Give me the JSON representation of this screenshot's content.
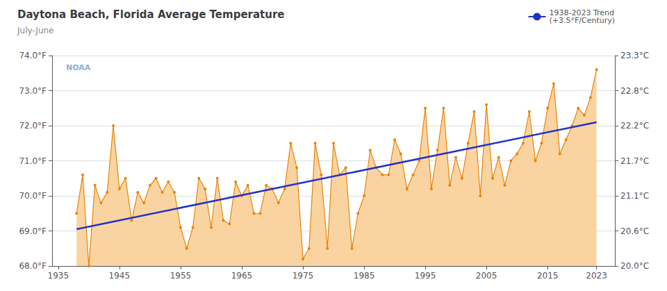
{
  "chart_data": {
    "type": "line",
    "title": "Daytona Beach, Florida Average Temperature",
    "subtitle": "July-June",
    "annotations": [
      "NOAA"
    ],
    "x": [
      1938,
      1939,
      1940,
      1941,
      1942,
      1943,
      1944,
      1945,
      1946,
      1947,
      1948,
      1949,
      1950,
      1951,
      1952,
      1953,
      1954,
      1955,
      1956,
      1957,
      1958,
      1959,
      1960,
      1961,
      1962,
      1963,
      1964,
      1965,
      1966,
      1967,
      1968,
      1969,
      1970,
      1971,
      1972,
      1973,
      1974,
      1975,
      1976,
      1977,
      1978,
      1979,
      1980,
      1981,
      1982,
      1983,
      1984,
      1985,
      1986,
      1987,
      1988,
      1989,
      1990,
      1991,
      1992,
      1993,
      1994,
      1995,
      1996,
      1997,
      1998,
      1999,
      2000,
      2001,
      2002,
      2003,
      2004,
      2005,
      2006,
      2007,
      2008,
      2009,
      2010,
      2011,
      2012,
      2013,
      2014,
      2015,
      2016,
      2017,
      2018,
      2019,
      2020,
      2021,
      2022,
      2023
    ],
    "series": [
      {
        "color": "#e8820a",
        "fill_color": "#fad4a0",
        "marker": "circle",
        "values": [
          69.5,
          70.6,
          68.0,
          70.3,
          69.8,
          70.1,
          72.0,
          70.2,
          70.5,
          69.3,
          70.1,
          69.8,
          70.3,
          70.5,
          70.1,
          70.4,
          70.1,
          69.1,
          68.5,
          69.1,
          70.5,
          70.2,
          69.1,
          70.5,
          69.3,
          69.2,
          70.4,
          70.0,
          70.3,
          69.5,
          69.5,
          70.3,
          70.2,
          69.8,
          70.2,
          71.5,
          70.8,
          68.2,
          68.5,
          71.5,
          70.6,
          68.5,
          71.5,
          70.6,
          70.8,
          68.5,
          69.5,
          70.0,
          71.3,
          70.8,
          70.6,
          70.6,
          71.6,
          71.2,
          70.2,
          70.6,
          71.0,
          72.5,
          70.2,
          71.3,
          72.5,
          70.3,
          71.1,
          70.5,
          71.5,
          72.4,
          70.0,
          72.6,
          70.5,
          71.1,
          70.3,
          71.0,
          71.2,
          71.5,
          72.4,
          71.0,
          71.5,
          72.5,
          73.2,
          71.2,
          71.6,
          72.0,
          72.5,
          72.3,
          72.8,
          73.6
        ]
      },
      {
        "name": "1938-2023 Trend\n(+3.5°F/Century)",
        "color": "#2233cc",
        "x": [
          1938,
          2023
        ],
        "values": [
          69.05,
          72.1
        ]
      }
    ],
    "xlim": [
      1934,
      2026
    ],
    "xticks": [
      1935,
      1945,
      1955,
      1965,
      1975,
      1985,
      1995,
      2005,
      2015,
      2023
    ],
    "ylim": [
      68.0,
      74.0
    ],
    "yticks": [
      {
        "value": 68.0,
        "label": "68.0°F"
      },
      {
        "value": 69.0,
        "label": "69.0°F"
      },
      {
        "value": 70.0,
        "label": "70.0°F"
      },
      {
        "value": 71.0,
        "label": "71.0°F"
      },
      {
        "value": 72.0,
        "label": "72.0°F"
      },
      {
        "value": 73.0,
        "label": "73.0°F"
      },
      {
        "value": 74.0,
        "label": "74.0°F"
      }
    ],
    "y2lim": [
      68.0,
      74.0
    ],
    "y2ticks": [
      {
        "value": 68.0,
        "label": "20.0°C"
      },
      {
        "value": 69.0,
        "label": "20.6°C"
      },
      {
        "value": 70.0,
        "label": "21.1°C"
      },
      {
        "value": 71.0,
        "label": "21.7°C"
      },
      {
        "value": 72.0,
        "label": "22.2°C"
      },
      {
        "value": 73.0,
        "label": "22.8°C"
      },
      {
        "value": 74.0,
        "label": "23.3°C"
      }
    ],
    "grid": true,
    "legend": "upper right"
  }
}
